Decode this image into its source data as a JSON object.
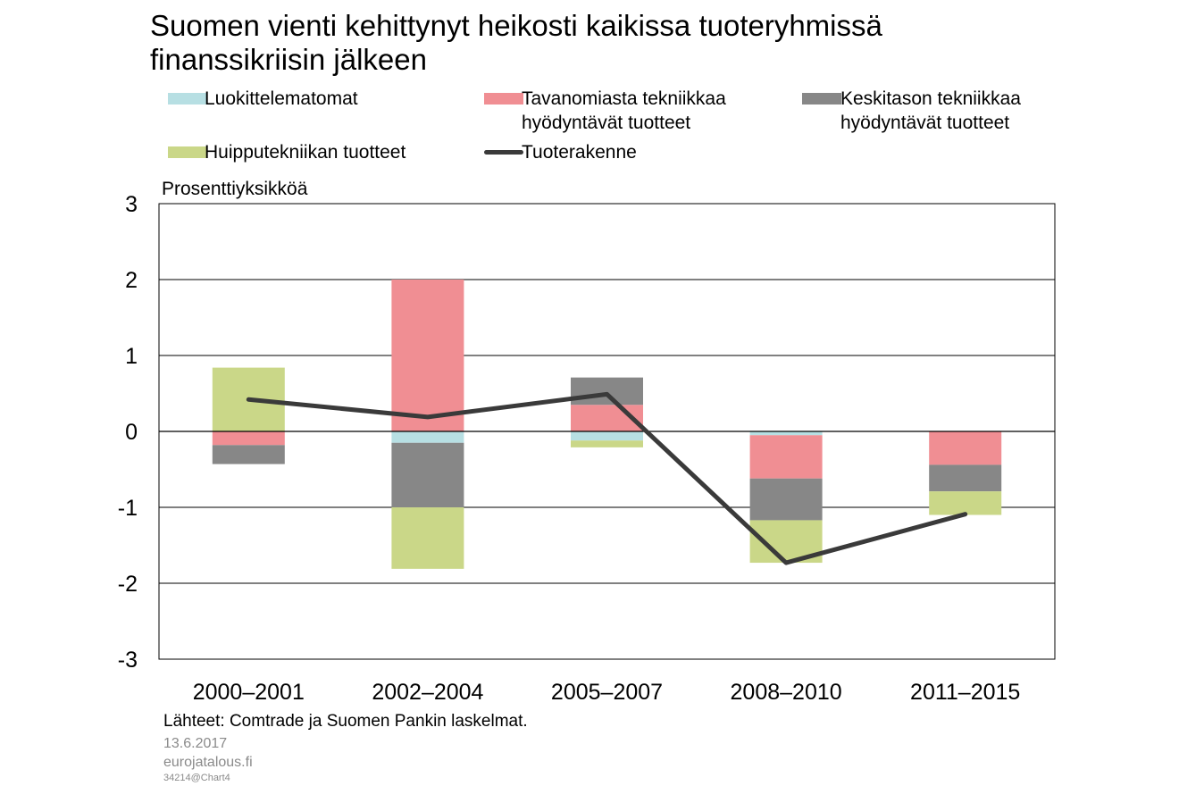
{
  "title": "Suomen vienti kehittynyt heikosti kaikissa tuoteryhmissä finanssikriisin jälkeen",
  "unit_label": "Prosenttiyksikköä",
  "legend": [
    {
      "label": "Luokittelematomat",
      "color": "#b7dfe3",
      "kind": "bar"
    },
    {
      "label": "Tavanomiasta tekniikkaa\nhyödyntävät tuotteet",
      "color": "#f08e93",
      "kind": "bar"
    },
    {
      "label": "Keskitason tekniikkaa\n    hyödyntävät tuotteet",
      "color": "#878787",
      "kind": "bar"
    },
    {
      "label": "Huipputekniikan tuotteet",
      "color": "#cad788",
      "kind": "bar"
    },
    {
      "label": "Tuoterakenne",
      "color": "#3a3a3a",
      "kind": "line"
    }
  ],
  "chart_data": {
    "type": "bar",
    "stacked": true,
    "categories": [
      "2000–2001",
      "2002–2004",
      "2005–2007",
      "2008–2010",
      "2011–2015"
    ],
    "series": [
      {
        "name": "Luokittelematomat",
        "color": "#b7dfe3",
        "values": [
          0.0,
          -0.15,
          -0.12,
          -0.05,
          0.0
        ]
      },
      {
        "name": "Tavanomiasta tekniikkaa hyödyntävät tuotteet",
        "color": "#f08e93",
        "values": [
          -0.18,
          2.0,
          0.35,
          -0.57,
          -0.44
        ]
      },
      {
        "name": "Keskitason tekniikkaa hyödyntävät tuotteet",
        "color": "#878787",
        "values": [
          -0.25,
          -0.85,
          0.36,
          -0.55,
          -0.35
        ]
      },
      {
        "name": "Huipputekniikan tuotteet",
        "color": "#cad788",
        "values": [
          0.84,
          -0.81,
          -0.09,
          -0.56,
          -0.31
        ]
      }
    ],
    "line": {
      "name": "Tuoterakenne",
      "color": "#3a3a3a",
      "values": [
        0.42,
        0.19,
        0.49,
        -1.73,
        -1.09
      ]
    },
    "ylim": [
      -3,
      3
    ],
    "yticks": [
      3,
      2,
      1,
      0,
      -1,
      -2,
      -3
    ],
    "grid": true,
    "legend_position": "top"
  },
  "footer": {
    "source": "Lähteet: Comtrade ja Suomen Pankin laskelmat.",
    "date": "13.6.2017",
    "site": "eurojatalous.fi",
    "code": "34214@Chart4"
  }
}
